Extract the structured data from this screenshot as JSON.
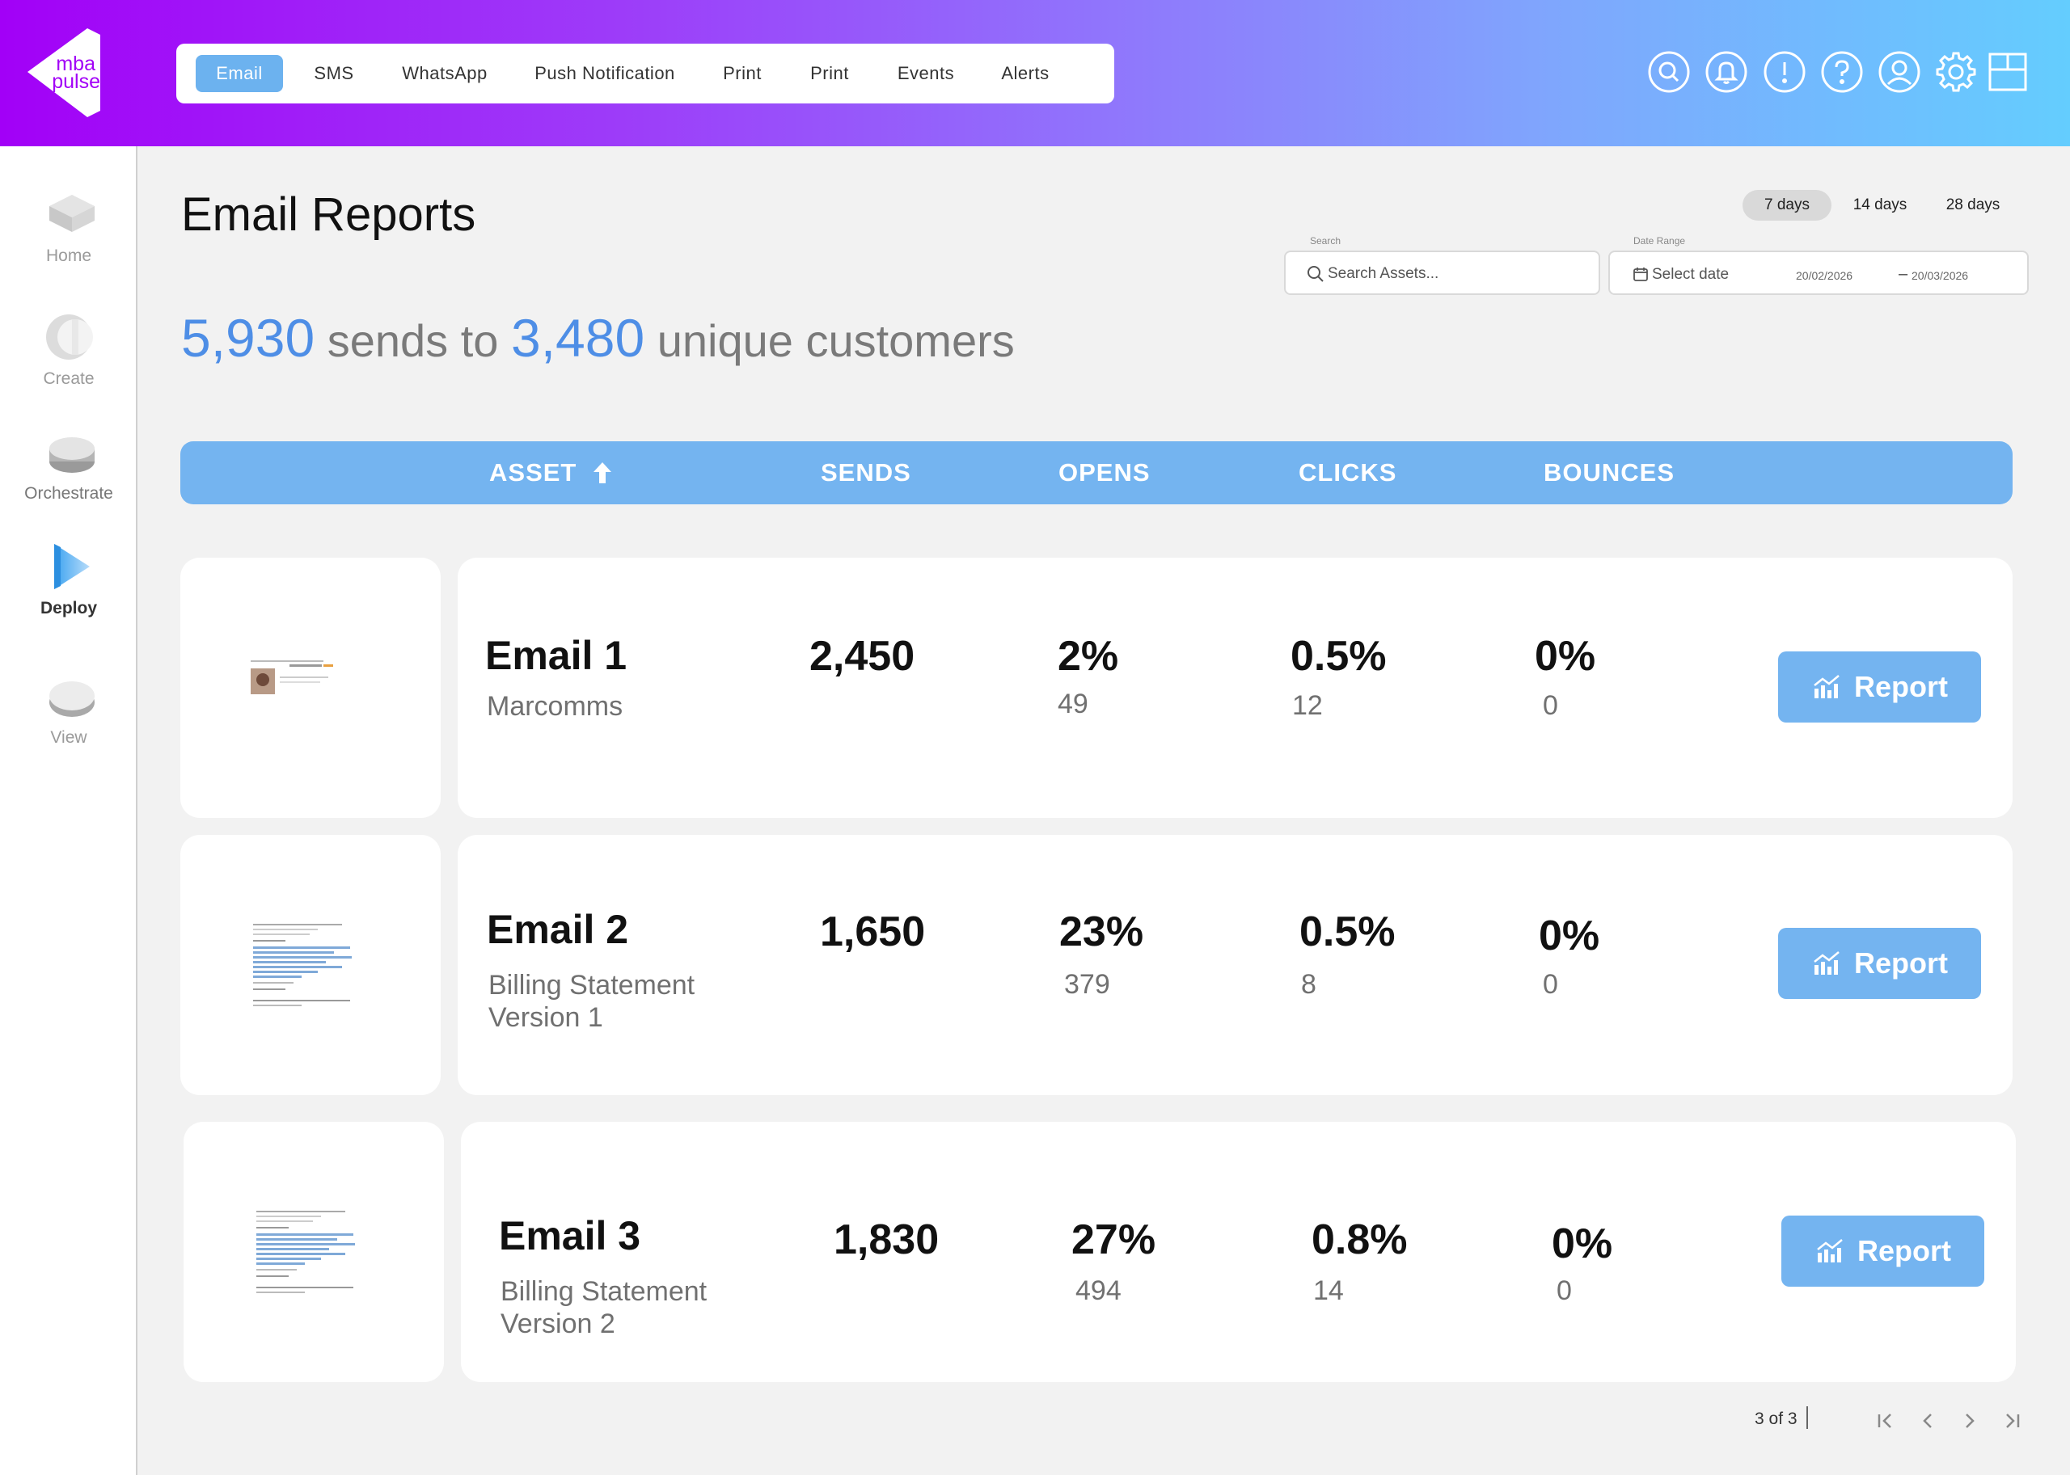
{
  "brand": {
    "logo_line1": "mba",
    "logo_line2": "pulse"
  },
  "nav": {
    "tabs": [
      {
        "label": "Email",
        "active": true
      },
      {
        "label": "SMS"
      },
      {
        "label": "WhatsApp"
      },
      {
        "label": "Push Notification"
      },
      {
        "label": "Print"
      },
      {
        "label": "Print"
      },
      {
        "label": "Events"
      },
      {
        "label": "Alerts"
      }
    ],
    "icons": [
      "search-icon",
      "bell-icon",
      "alert-icon",
      "help-icon",
      "user-icon",
      "gear-icon",
      "layout-icon"
    ]
  },
  "sidebar": {
    "items": [
      {
        "label": "Home"
      },
      {
        "label": "Create"
      },
      {
        "label": "Orchestrate"
      },
      {
        "label": "Deploy",
        "active": true
      },
      {
        "label": "View"
      }
    ]
  },
  "page": {
    "title": "Email Reports",
    "summary": {
      "sends": "5,930",
      "mid": "sends to",
      "customers": "3,480",
      "end": "unique customers"
    }
  },
  "ranges": [
    "7 days",
    "14 days",
    "28 days"
  ],
  "search": {
    "label": "Search",
    "placeholder": "Search Assets..."
  },
  "date_range": {
    "label": "Date Range",
    "placeholder": "Select date",
    "start": "20/02/2026",
    "end": "20/03/2026"
  },
  "table": {
    "columns": [
      "ASSET",
      "SENDS",
      "OPENS",
      "CLICKS",
      "BOUNCES"
    ],
    "sort_icon": "arrow-up-icon",
    "rows": [
      {
        "name": "Email 1",
        "sub": "Marcomms",
        "sends": "2,450",
        "opens_pct": "2%",
        "opens": "49",
        "clicks_pct": "0.5%",
        "clicks": "12",
        "bounces_pct": "0%",
        "bounces": "0",
        "action": "Report"
      },
      {
        "name": "Email 2",
        "sub": "Billing Statement Version 1",
        "sends": "1,650",
        "opens_pct": "23%",
        "opens": "379",
        "clicks_pct": "0.5%",
        "clicks": "8",
        "bounces_pct": "0%",
        "bounces": "0",
        "action": "Report"
      },
      {
        "name": "Email 3",
        "sub": "Billing Statement Version 2",
        "sends": "1,830",
        "opens_pct": "27%",
        "opens": "494",
        "clicks_pct": "0.8%",
        "clicks": "14",
        "bounces_pct": "0%",
        "bounces": "0",
        "action": "Report"
      }
    ]
  },
  "pagination": {
    "text": "3 of 3"
  },
  "colors": {
    "accent": "#74b4f0",
    "summary_number": "#4e8ee6",
    "header_start": "#a200f7",
    "header_end": "#64cdfe"
  }
}
